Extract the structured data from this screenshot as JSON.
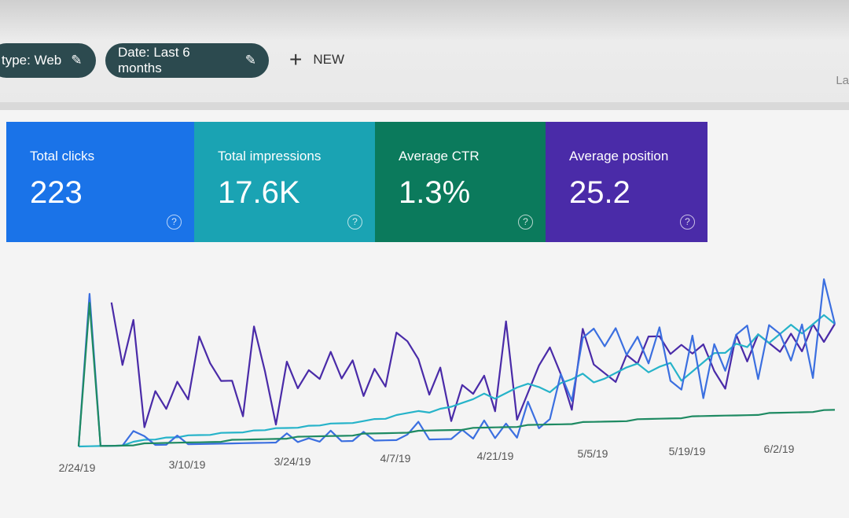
{
  "filters": [
    {
      "label": "type: Web",
      "icon": "pencil-icon"
    },
    {
      "label": "Date: Last 6 months",
      "icon": "pencil-icon"
    }
  ],
  "new_button": {
    "label": "NEW",
    "icon": "plus-icon"
  },
  "right_text": "La",
  "metrics": [
    {
      "label": "Total clicks",
      "value": "223",
      "color": "#1a73e8"
    },
    {
      "label": "Total impressions",
      "value": "17.6K",
      "color": "#1aa3b3"
    },
    {
      "label": "Average CTR",
      "value": "1.3%",
      "color": "#0b7a5c"
    },
    {
      "label": "Average position",
      "value": "25.2",
      "color": "#4a2ba8"
    }
  ],
  "help_icon": "?",
  "chart_data": {
    "type": "line",
    "x_tick_labels": [
      "2/24/19",
      "3/10/19",
      "3/24/19",
      "4/7/19",
      "4/21/19",
      "5/5/19",
      "5/19/19",
      "6/2/19"
    ],
    "grid": false,
    "series": [
      {
        "metric": "Average position",
        "color": "#4a2ba8",
        "values": [
          null,
          null,
          null,
          80,
          45,
          70,
          10,
          30,
          20,
          35,
          25,
          60,
          45,
          35,
          35,
          15,
          65,
          40,
          10,
          45,
          30,
          40,
          35,
          50,
          35,
          45,
          25,
          40,
          30,
          60,
          55,
          45,
          25,
          40,
          10,
          30,
          25,
          35,
          15,
          65,
          10,
          25,
          40,
          50,
          35,
          15,
          60,
          40,
          35,
          30,
          45,
          40,
          55,
          55,
          45,
          50,
          45,
          50,
          35,
          25,
          55,
          40,
          55,
          50,
          45,
          55,
          45,
          60,
          50,
          60
        ]
      },
      {
        "metric": "Total impressions",
        "color": "#26b3c9",
        "values": [
          0,
          0,
          0,
          0,
          0,
          2,
          3,
          3,
          4,
          4,
          5,
          5,
          5,
          6,
          6,
          6,
          7,
          7,
          8,
          8,
          8,
          9,
          9,
          10,
          10,
          10,
          11,
          12,
          12,
          14,
          15,
          16,
          15,
          17,
          18,
          20,
          22,
          25,
          22,
          25,
          28,
          30,
          28,
          25,
          30,
          32,
          35,
          30,
          32,
          35,
          38,
          40,
          35,
          38,
          40,
          30,
          35,
          40,
          45,
          45,
          50,
          48,
          55,
          50,
          55,
          60,
          55,
          60,
          65,
          60
        ]
      },
      {
        "metric": "Total clicks",
        "color": "#3b6fe0",
        "values": [
          0,
          85,
          0,
          0,
          0,
          8,
          5,
          0,
          0,
          5,
          0,
          0,
          0,
          0,
          0,
          0,
          0,
          0,
          0,
          5,
          0,
          2,
          0,
          6,
          0,
          0,
          5,
          0,
          0,
          0,
          3,
          10,
          0,
          0,
          0,
          5,
          0,
          10,
          0,
          8,
          0,
          20,
          5,
          10,
          35,
          20,
          55,
          60,
          50,
          60,
          45,
          55,
          40,
          60,
          30,
          25,
          55,
          20,
          50,
          35,
          55,
          60,
          30,
          60,
          55,
          40,
          60,
          30,
          85,
          60
        ]
      },
      {
        "metric": "Average CTR",
        "color": "#1e8a62",
        "values": [
          0,
          80,
          0,
          0,
          0,
          0,
          1,
          1,
          1,
          1,
          1,
          1,
          1,
          1,
          2,
          2,
          2,
          2,
          2,
          2,
          3,
          3,
          3,
          3,
          3,
          3,
          4,
          4,
          4,
          4,
          4,
          5,
          5,
          5,
          5,
          5,
          6,
          6,
          6,
          6,
          6,
          7,
          7,
          7,
          7,
          7,
          8,
          8,
          8,
          8,
          8,
          9,
          9,
          9,
          9,
          9,
          10,
          10,
          10,
          10,
          10,
          10,
          10,
          11,
          11,
          11,
          11,
          11,
          12,
          12
        ]
      }
    ]
  }
}
